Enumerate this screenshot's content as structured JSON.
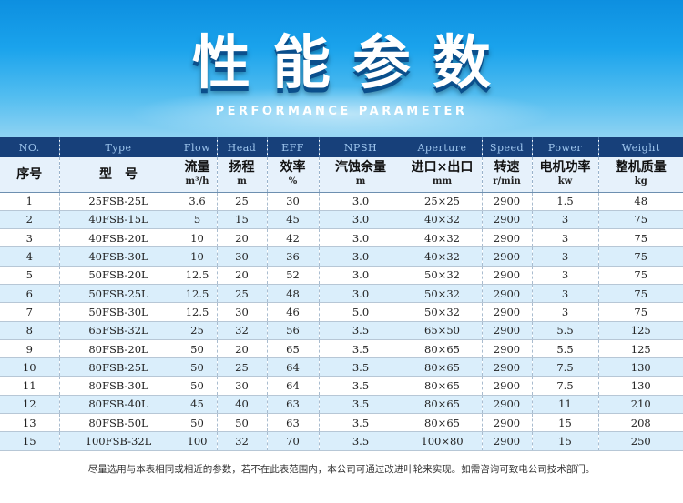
{
  "banner": {
    "title": "性能参数",
    "subtitle": "PERFORMANCE PARAMETER"
  },
  "table": {
    "header_en": [
      "NO.",
      "Type",
      "Flow",
      "Head",
      "EFF",
      "NPSH",
      "Aperture",
      "Speed",
      "Power",
      "Weight"
    ],
    "header_cn": [
      {
        "name": "序号",
        "unit": ""
      },
      {
        "name": "型　号",
        "unit": ""
      },
      {
        "name": "流量",
        "unit": "m³/h"
      },
      {
        "name": "扬程",
        "unit": "m"
      },
      {
        "name": "效率",
        "unit": "%"
      },
      {
        "name": "汽蚀余量",
        "unit": "m"
      },
      {
        "name": "进口×出口",
        "unit": "mm"
      },
      {
        "name": "转速",
        "unit": "r/min"
      },
      {
        "name": "电机功率",
        "unit": "kw"
      },
      {
        "name": "整机质量",
        "unit": "kg"
      }
    ],
    "rows": [
      [
        "1",
        "25FSB-25L",
        "3.6",
        "25",
        "30",
        "3.0",
        "25×25",
        "2900",
        "1.5",
        "48"
      ],
      [
        "2",
        "40FSB-15L",
        "5",
        "15",
        "45",
        "3.0",
        "40×32",
        "2900",
        "3",
        "75"
      ],
      [
        "3",
        "40FSB-20L",
        "10",
        "20",
        "42",
        "3.0",
        "40×32",
        "2900",
        "3",
        "75"
      ],
      [
        "4",
        "40FSB-30L",
        "10",
        "30",
        "36",
        "3.0",
        "40×32",
        "2900",
        "3",
        "75"
      ],
      [
        "5",
        "50FSB-20L",
        "12.5",
        "20",
        "52",
        "3.0",
        "50×32",
        "2900",
        "3",
        "75"
      ],
      [
        "6",
        "50FSB-25L",
        "12.5",
        "25",
        "48",
        "3.0",
        "50×32",
        "2900",
        "3",
        "75"
      ],
      [
        "7",
        "50FSB-30L",
        "12.5",
        "30",
        "46",
        "5.0",
        "50×32",
        "2900",
        "3",
        "75"
      ],
      [
        "8",
        "65FSB-32L",
        "25",
        "32",
        "56",
        "3.5",
        "65×50",
        "2900",
        "5.5",
        "125"
      ],
      [
        "9",
        "80FSB-20L",
        "50",
        "20",
        "65",
        "3.5",
        "80×65",
        "2900",
        "5.5",
        "125"
      ],
      [
        "10",
        "80FSB-25L",
        "50",
        "25",
        "64",
        "3.5",
        "80×65",
        "2900",
        "7.5",
        "130"
      ],
      [
        "11",
        "80FSB-30L",
        "50",
        "30",
        "64",
        "3.5",
        "80×65",
        "2900",
        "7.5",
        "130"
      ],
      [
        "12",
        "80FSB-40L",
        "45",
        "40",
        "63",
        "3.5",
        "80×65",
        "2900",
        "11",
        "210"
      ],
      [
        "13",
        "80FSB-50L",
        "50",
        "50",
        "63",
        "3.5",
        "80×65",
        "2900",
        "15",
        "208"
      ],
      [
        "15",
        "100FSB-32L",
        "100",
        "32",
        "70",
        "3.5",
        "100×80",
        "2900",
        "15",
        "250"
      ]
    ]
  },
  "note": "尽量选用与本表相同或相近的参数，若不在此表范围内，本公司可通过改进叶轮来实现。如需咨询可致电公司技术部门。"
}
